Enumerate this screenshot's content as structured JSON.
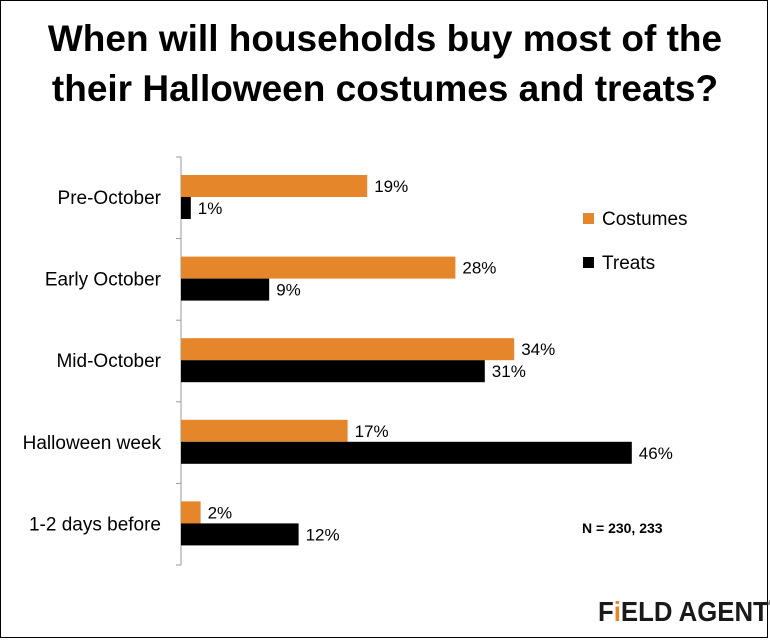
{
  "title_line1": "When will households buy most of the",
  "title_line2": "their Halloween costumes and treats?",
  "note": "N = 230, 233",
  "logo": {
    "part1": "F",
    "accent": "i",
    "part2": "ELD AGENT",
    "mark": "®"
  },
  "colors": {
    "costumes": "#E5862A",
    "treats": "#000000"
  },
  "chart_data": {
    "type": "bar",
    "orientation": "horizontal",
    "categories": [
      "Pre-October",
      "Early October",
      "Mid-October",
      "Halloween week",
      "1-2 days before"
    ],
    "series": [
      {
        "name": "Costumes",
        "values": [
          19,
          28,
          34,
          17,
          2
        ],
        "labels": [
          "19%",
          "28%",
          "34%",
          "17%",
          "2%"
        ]
      },
      {
        "name": "Treats",
        "values": [
          1,
          9,
          31,
          46,
          12
        ],
        "labels": [
          "1%",
          "9%",
          "31%",
          "46%",
          "12%"
        ]
      }
    ],
    "xlim": [
      0,
      50
    ],
    "value_unit": "%",
    "grid": false,
    "legend": "right"
  }
}
